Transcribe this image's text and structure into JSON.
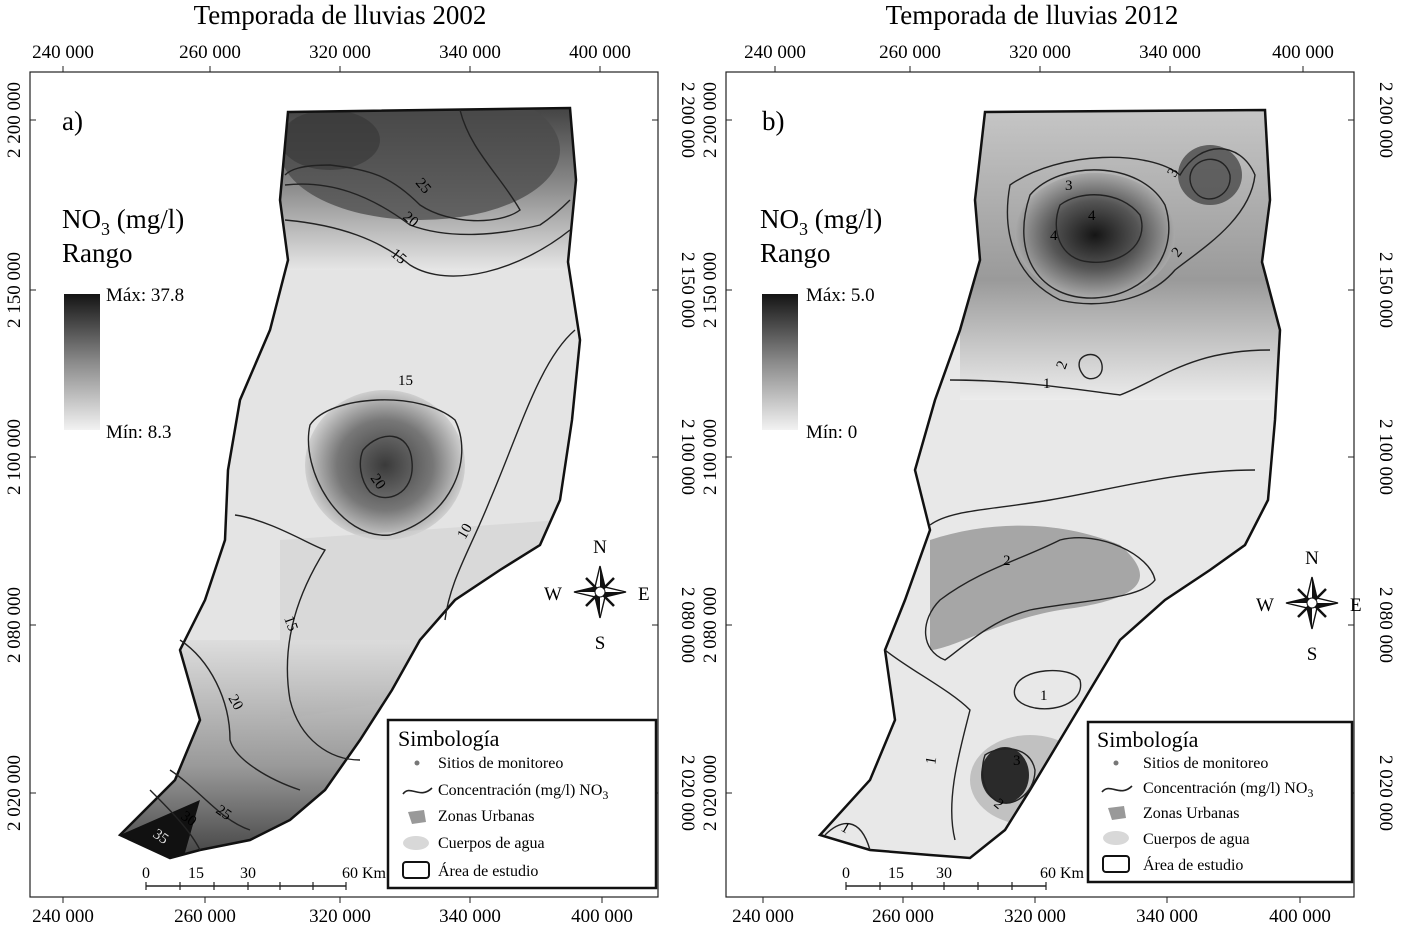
{
  "panels": [
    {
      "id": "a",
      "title": "Temporada de lluvias 2002",
      "panel_letter": "a)",
      "legend_heading_main": "NO",
      "legend_heading_sub": "3",
      "legend_heading_unit": " (mg/l)",
      "legend_range": "Rango",
      "legend_max": "Máx: 37.8",
      "legend_min": "Mín: 8.3",
      "x_ticks_top": [
        "240 000",
        "260 000",
        "320 000",
        "340 000",
        "400 000"
      ],
      "x_ticks_bottom": [
        "240 000",
        "260 000",
        "320 000",
        "340 000",
        "400 000"
      ],
      "y_ticks": [
        "2 200 000",
        "2 150 000",
        "2 100 000",
        "2 080 000",
        "2 020 000"
      ],
      "contour_labels": [
        "25",
        "20",
        "15",
        "15",
        "20",
        "10",
        "15",
        "20",
        "25",
        "30",
        "35"
      ],
      "scale_labels": [
        "0",
        "15",
        "30",
        "60 Km"
      ]
    },
    {
      "id": "b",
      "title": "Temporada de lluvias 2012",
      "panel_letter": "b)",
      "legend_heading_main": "NO",
      "legend_heading_sub": "3",
      "legend_heading_unit": " (mg/l)",
      "legend_range": "Rango",
      "legend_max": "Máx: 5.0",
      "legend_min": "Mín: 0",
      "x_ticks_top": [
        "240 000",
        "260 000",
        "320 000",
        "340 000",
        "400 000"
      ],
      "x_ticks_bottom": [
        "240 000",
        "260 000",
        "320 000",
        "340 000",
        "400 000"
      ],
      "y_ticks": [
        "2 200 000",
        "2 150 000",
        "2 100 000",
        "2 080 000",
        "2 020 000"
      ],
      "contour_labels": [
        "3",
        "3",
        "4",
        "4",
        "2",
        "2",
        "1",
        "2",
        "1",
        "1",
        "3",
        "2",
        "1"
      ],
      "scale_labels": [
        "0",
        "15",
        "30",
        "60 Km"
      ]
    }
  ],
  "compass": {
    "n": "N",
    "s": "S",
    "e": "E",
    "w": "W"
  },
  "symbology": {
    "title": "Simbología",
    "items": [
      "Sitios de monitoreo",
      "Concentración (mg/l) NO",
      "Zonas Urbanas",
      "Cuerpos de agua",
      "Área de estudio"
    ],
    "no3_sub": "3"
  }
}
